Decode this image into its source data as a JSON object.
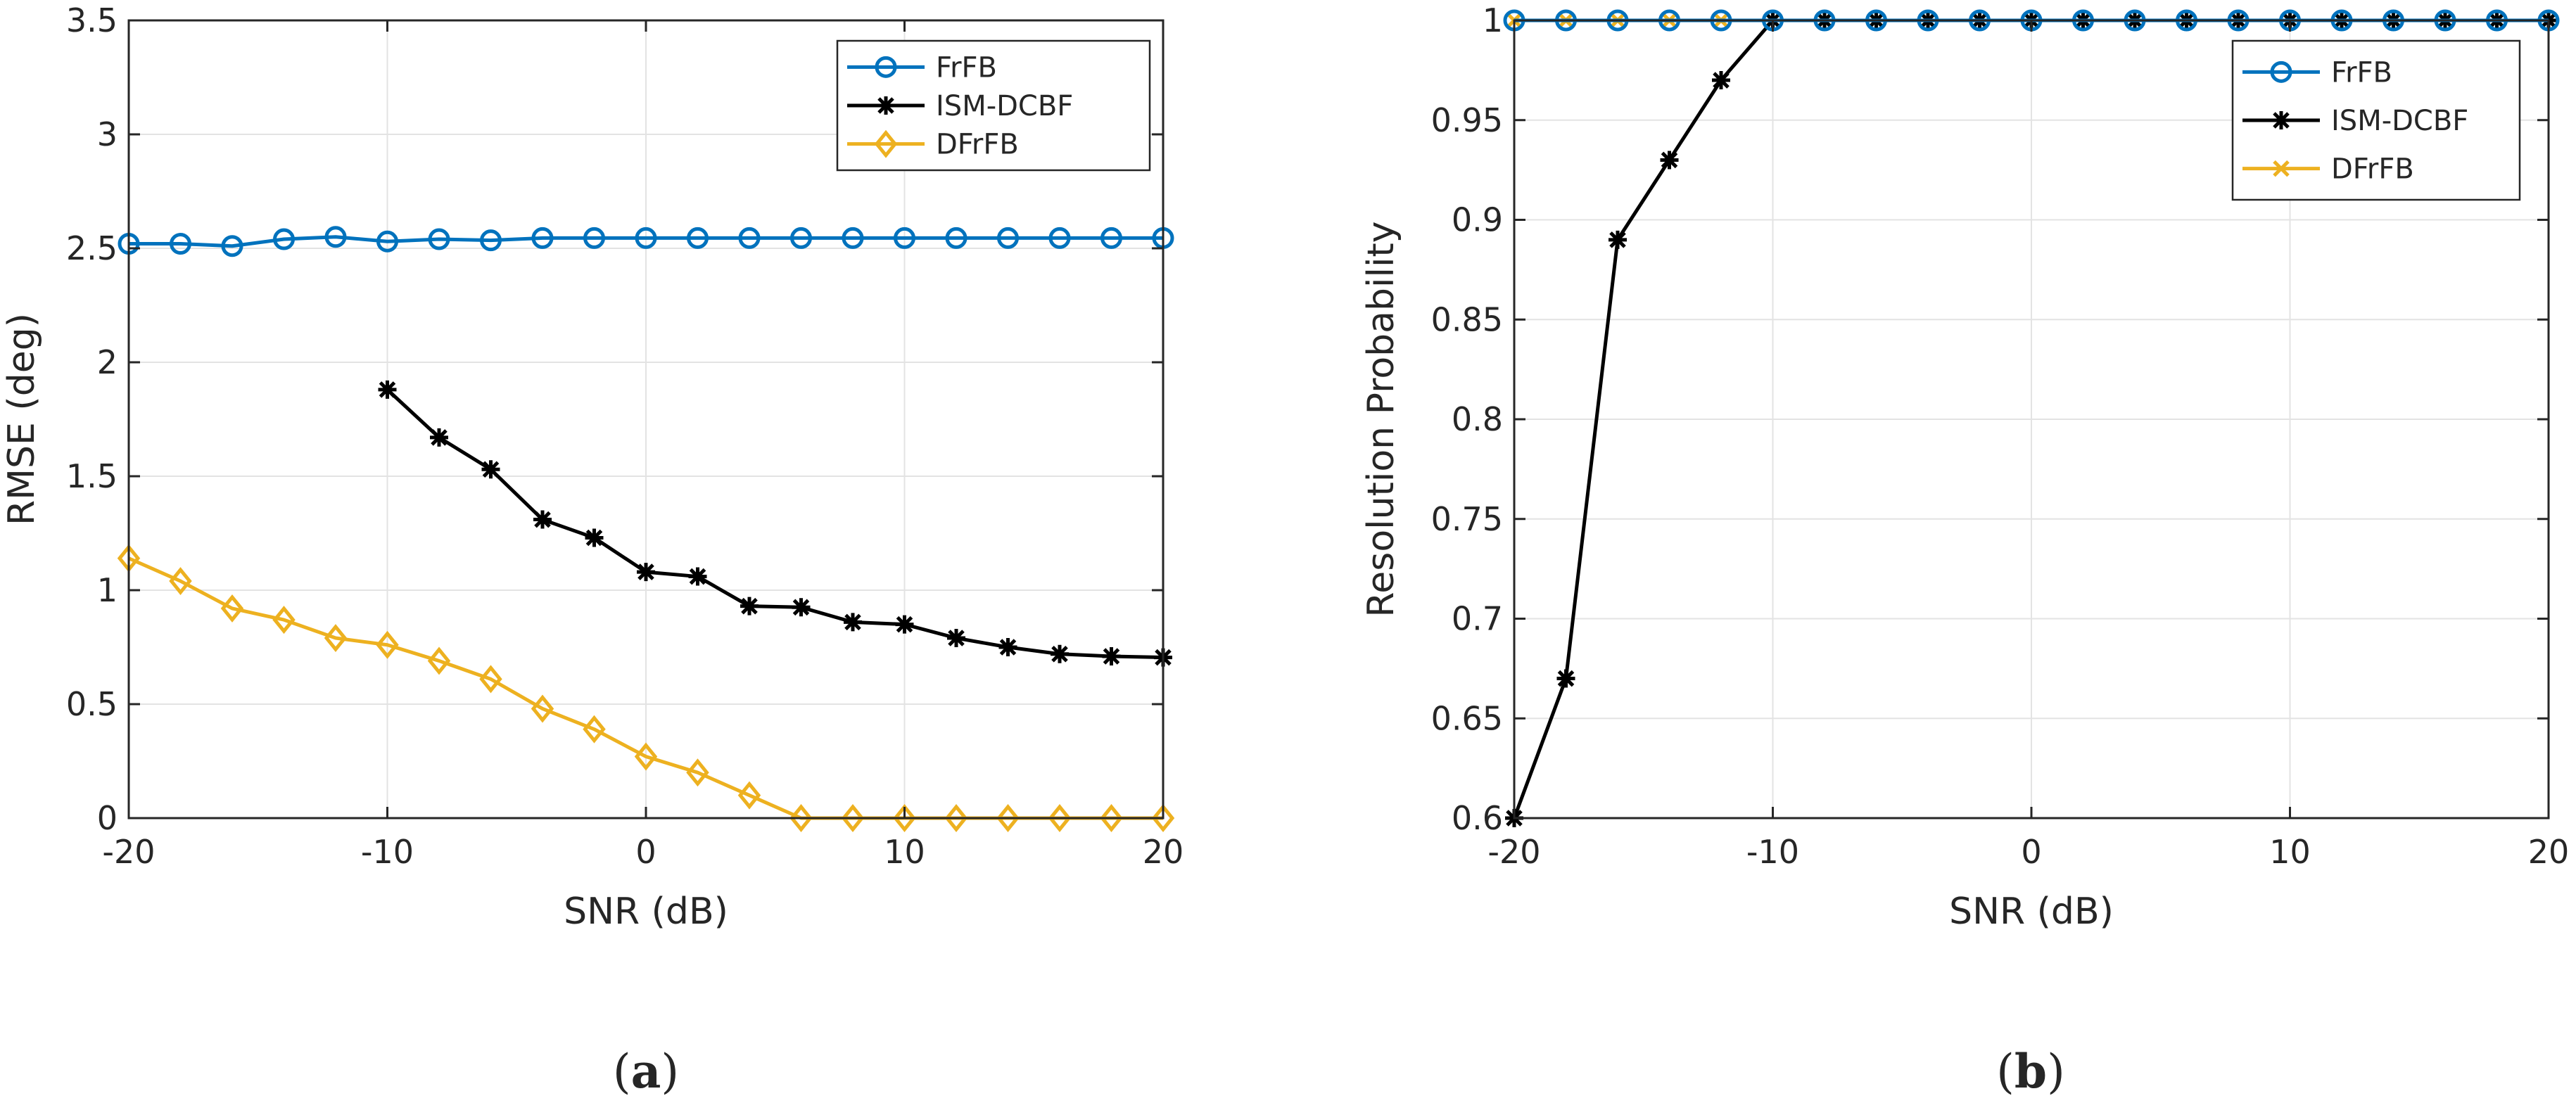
{
  "colors": {
    "FrFB": "#0072BD",
    "ISM-DCBF": "#000000",
    "DFrFB": "#EDB120",
    "grid": "#e6e6e6",
    "axis": "#262626"
  },
  "chart_data": [
    {
      "type": "line",
      "panel_label": "(a)",
      "xlabel": "SNR (dB)",
      "ylabel": "RMSE (deg)",
      "xlim": [
        -20,
        20
      ],
      "ylim": [
        0,
        3.5
      ],
      "xticks": [
        -20,
        -10,
        0,
        10,
        20
      ],
      "yticks": [
        0,
        0.5,
        1,
        1.5,
        2,
        2.5,
        3,
        3.5
      ],
      "xtick_labels": [
        "-20",
        "-10",
        "0",
        "10",
        "20"
      ],
      "ytick_labels": [
        "0",
        "0.5",
        "1",
        "1.5",
        "2",
        "2.5",
        "3",
        "3.5"
      ],
      "grid": true,
      "legend_position": "top-right",
      "series": [
        {
          "name": "FrFB",
          "color": "#0072BD",
          "marker": "circle",
          "x": [
            -20,
            -18,
            -16,
            -14,
            -12,
            -10,
            -8,
            -6,
            -4,
            -2,
            0,
            2,
            4,
            6,
            8,
            10,
            12,
            14,
            16,
            18,
            20
          ],
          "y": [
            2.52,
            2.52,
            2.51,
            2.54,
            2.55,
            2.53,
            2.54,
            2.535,
            2.545,
            2.545,
            2.545,
            2.545,
            2.545,
            2.545,
            2.545,
            2.545,
            2.545,
            2.545,
            2.545,
            2.545,
            2.545
          ]
        },
        {
          "name": "ISM-DCBF",
          "color": "#000000",
          "marker": "asterisk",
          "x": [
            -10,
            -8,
            -6,
            -4,
            -2,
            0,
            2,
            4,
            6,
            8,
            10,
            12,
            14,
            16,
            18,
            20
          ],
          "y": [
            1.88,
            1.67,
            1.53,
            1.31,
            1.23,
            1.08,
            1.06,
            0.93,
            0.925,
            0.86,
            0.85,
            0.79,
            0.75,
            0.72,
            0.71,
            0.705
          ]
        },
        {
          "name": "DFrFB",
          "color": "#EDB120",
          "marker": "diamond",
          "x": [
            -20,
            -18,
            -16,
            -14,
            -12,
            -10,
            -8,
            -6,
            -4,
            -2,
            0,
            2,
            4,
            6,
            8,
            10,
            12,
            14,
            16,
            18,
            20
          ],
          "y": [
            1.14,
            1.04,
            0.92,
            0.87,
            0.79,
            0.76,
            0.69,
            0.61,
            0.48,
            0.39,
            0.27,
            0.2,
            0.1,
            0,
            0,
            0,
            0,
            0,
            0,
            0,
            0
          ]
        }
      ]
    },
    {
      "type": "line",
      "panel_label": "(b)",
      "xlabel": "SNR (dB)",
      "ylabel": "Resolution Probability",
      "xlim": [
        -20,
        20
      ],
      "ylim": [
        0.6,
        1
      ],
      "xticks": [
        -20,
        -10,
        0,
        10,
        20
      ],
      "yticks": [
        0.6,
        0.65,
        0.7,
        0.75,
        0.8,
        0.85,
        0.9,
        0.95,
        1
      ],
      "xtick_labels": [
        "-20",
        "-10",
        "0",
        "10",
        "20"
      ],
      "ytick_labels": [
        "0.6",
        "0.65",
        "0.7",
        "0.75",
        "0.8",
        "0.85",
        "0.9",
        "0.95",
        "1"
      ],
      "grid": true,
      "legend_position": "top-right",
      "series": [
        {
          "name": "DFrFB",
          "color": "#EDB120",
          "marker": "cross",
          "x": [
            -20,
            -18,
            -16,
            -14,
            -12,
            -10,
            -8,
            -6,
            -4,
            -2,
            0,
            2,
            4,
            6,
            8,
            10,
            12,
            14,
            16,
            18,
            20
          ],
          "y": [
            1,
            1,
            1,
            1,
            1,
            1,
            1,
            1,
            1,
            1,
            1,
            1,
            1,
            1,
            1,
            1,
            1,
            1,
            1,
            1,
            1
          ]
        },
        {
          "name": "ISM-DCBF",
          "color": "#000000",
          "marker": "asterisk",
          "x": [
            -20,
            -18,
            -16,
            -14,
            -12,
            -10,
            -8,
            -6,
            -4,
            -2,
            0,
            2,
            4,
            6,
            8,
            10,
            12,
            14,
            16,
            18,
            20
          ],
          "y": [
            0.6,
            0.67,
            0.89,
            0.93,
            0.97,
            1,
            1,
            1,
            1,
            1,
            1,
            1,
            1,
            1,
            1,
            1,
            1,
            1,
            1,
            1,
            1
          ]
        },
        {
          "name": "FrFB",
          "color": "#0072BD",
          "marker": "circle",
          "x": [
            -20,
            -18,
            -16,
            -14,
            -12,
            -10,
            -8,
            -6,
            -4,
            -2,
            0,
            2,
            4,
            6,
            8,
            10,
            12,
            14,
            16,
            18,
            20
          ],
          "y": [
            1,
            1,
            1,
            1,
            1,
            1,
            1,
            1,
            1,
            1,
            1,
            1,
            1,
            1,
            1,
            1,
            1,
            1,
            1,
            1,
            1
          ]
        }
      ],
      "legend_order": [
        "FrFB",
        "ISM-DCBF",
        "DFrFB"
      ]
    }
  ]
}
